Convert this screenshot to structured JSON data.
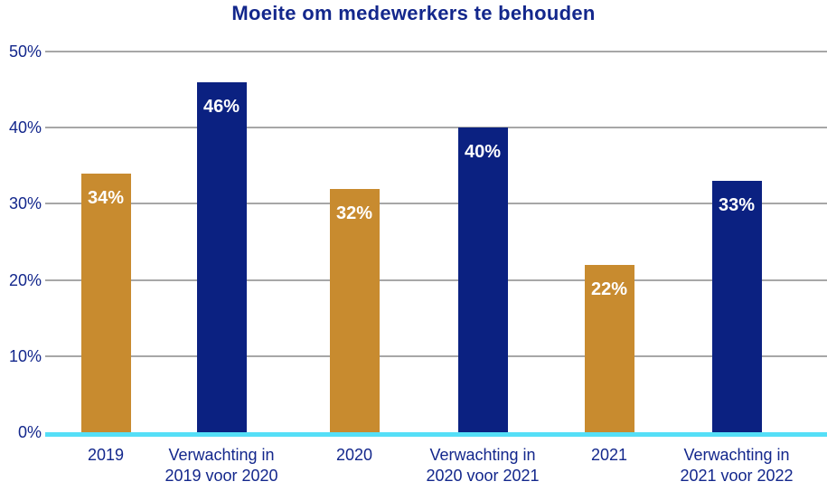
{
  "chart_data": {
    "type": "bar",
    "title": "Moeite om medewerkers te behouden",
    "categories": [
      "2019",
      "Verwachting in\n2019 voor 2020",
      "2020",
      "Verwachting in\n2020 voor 2021",
      "2021",
      "Verwachting in\n2021 voor 2022"
    ],
    "values": [
      34,
      46,
      32,
      40,
      22,
      33
    ],
    "value_labels": [
      "34%",
      "46%",
      "32%",
      "40%",
      "22%",
      "33%"
    ],
    "bar_colors": [
      "#C88B2F",
      "#0B2181",
      "#C88B2F",
      "#0B2181",
      "#C88B2F",
      "#0B2181"
    ],
    "ytick_values": [
      0,
      10,
      20,
      30,
      40,
      50
    ],
    "ytick_labels": [
      "0%",
      "10%",
      "20%",
      "30%",
      "40%",
      "50%"
    ],
    "ylim": [
      0,
      50
    ],
    "xlabel": "",
    "ylabel": "",
    "grid": true,
    "legend": "none",
    "colors": {
      "bar_orange": "#C88B2F",
      "bar_navy": "#0B2181",
      "text_navy": "#13278C",
      "gridline_gray": "#A7A7A7",
      "baseline_cyan": "#55DFF7",
      "value_label_white": "#FFFFFF",
      "background": "#FFFFFF"
    }
  }
}
